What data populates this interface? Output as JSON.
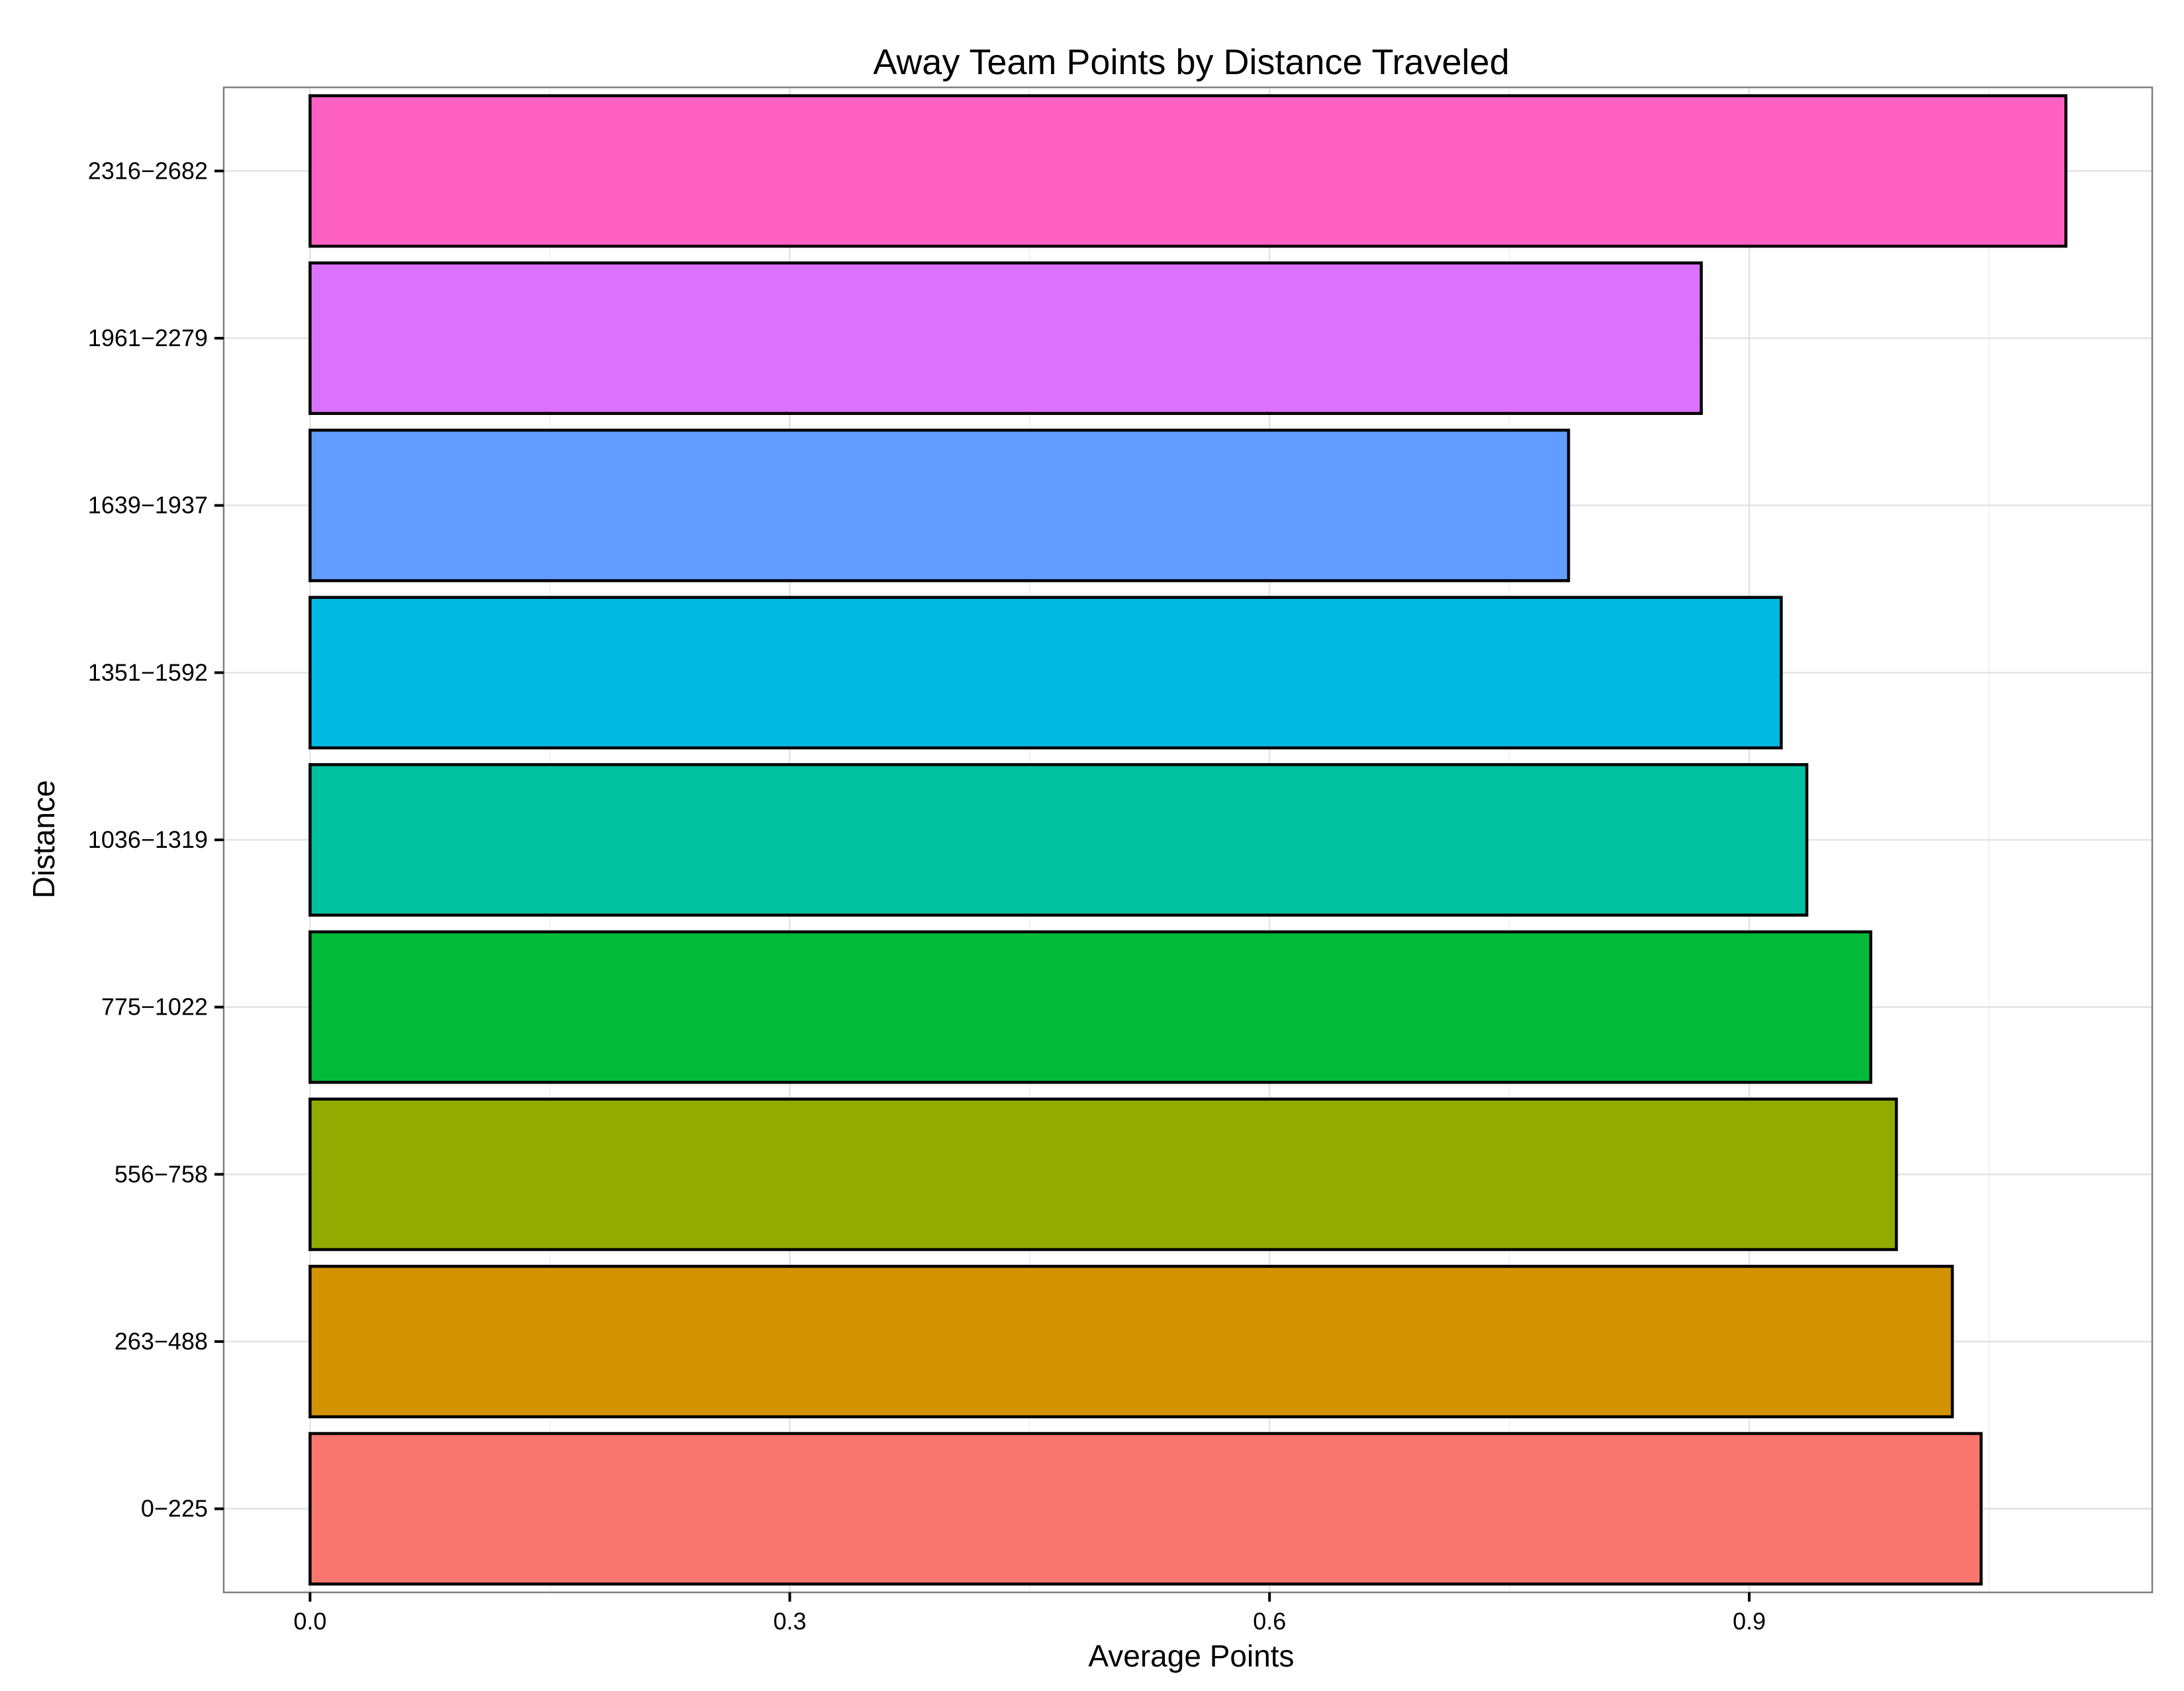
{
  "chart_data": {
    "type": "bar",
    "orientation": "horizontal",
    "title": "Away Team Points by Distance Traveled",
    "xlabel": "Average Points",
    "ylabel": "Distance",
    "categories": [
      "0−225",
      "263−488",
      "556−758",
      "775−1022",
      "1036−1319",
      "1351−1592",
      "1639−1937",
      "1961−2279",
      "2316−2682"
    ],
    "values": [
      1.045,
      1.027,
      0.992,
      0.976,
      0.936,
      0.92,
      0.787,
      0.87,
      1.098
    ],
    "colors": [
      "#F8766D",
      "#D39200",
      "#93AA00",
      "#00BA38",
      "#00C19F",
      "#00B9E3",
      "#619CFF",
      "#DB72FB",
      "#FF61C3"
    ],
    "x_ticks": [
      "0.0",
      "0.3",
      "0.6",
      "0.9"
    ],
    "x_tick_values": [
      0.0,
      0.3,
      0.6,
      0.9
    ],
    "xlim": [
      -0.054,
      1.152
    ],
    "grid": true,
    "legend": "none"
  }
}
